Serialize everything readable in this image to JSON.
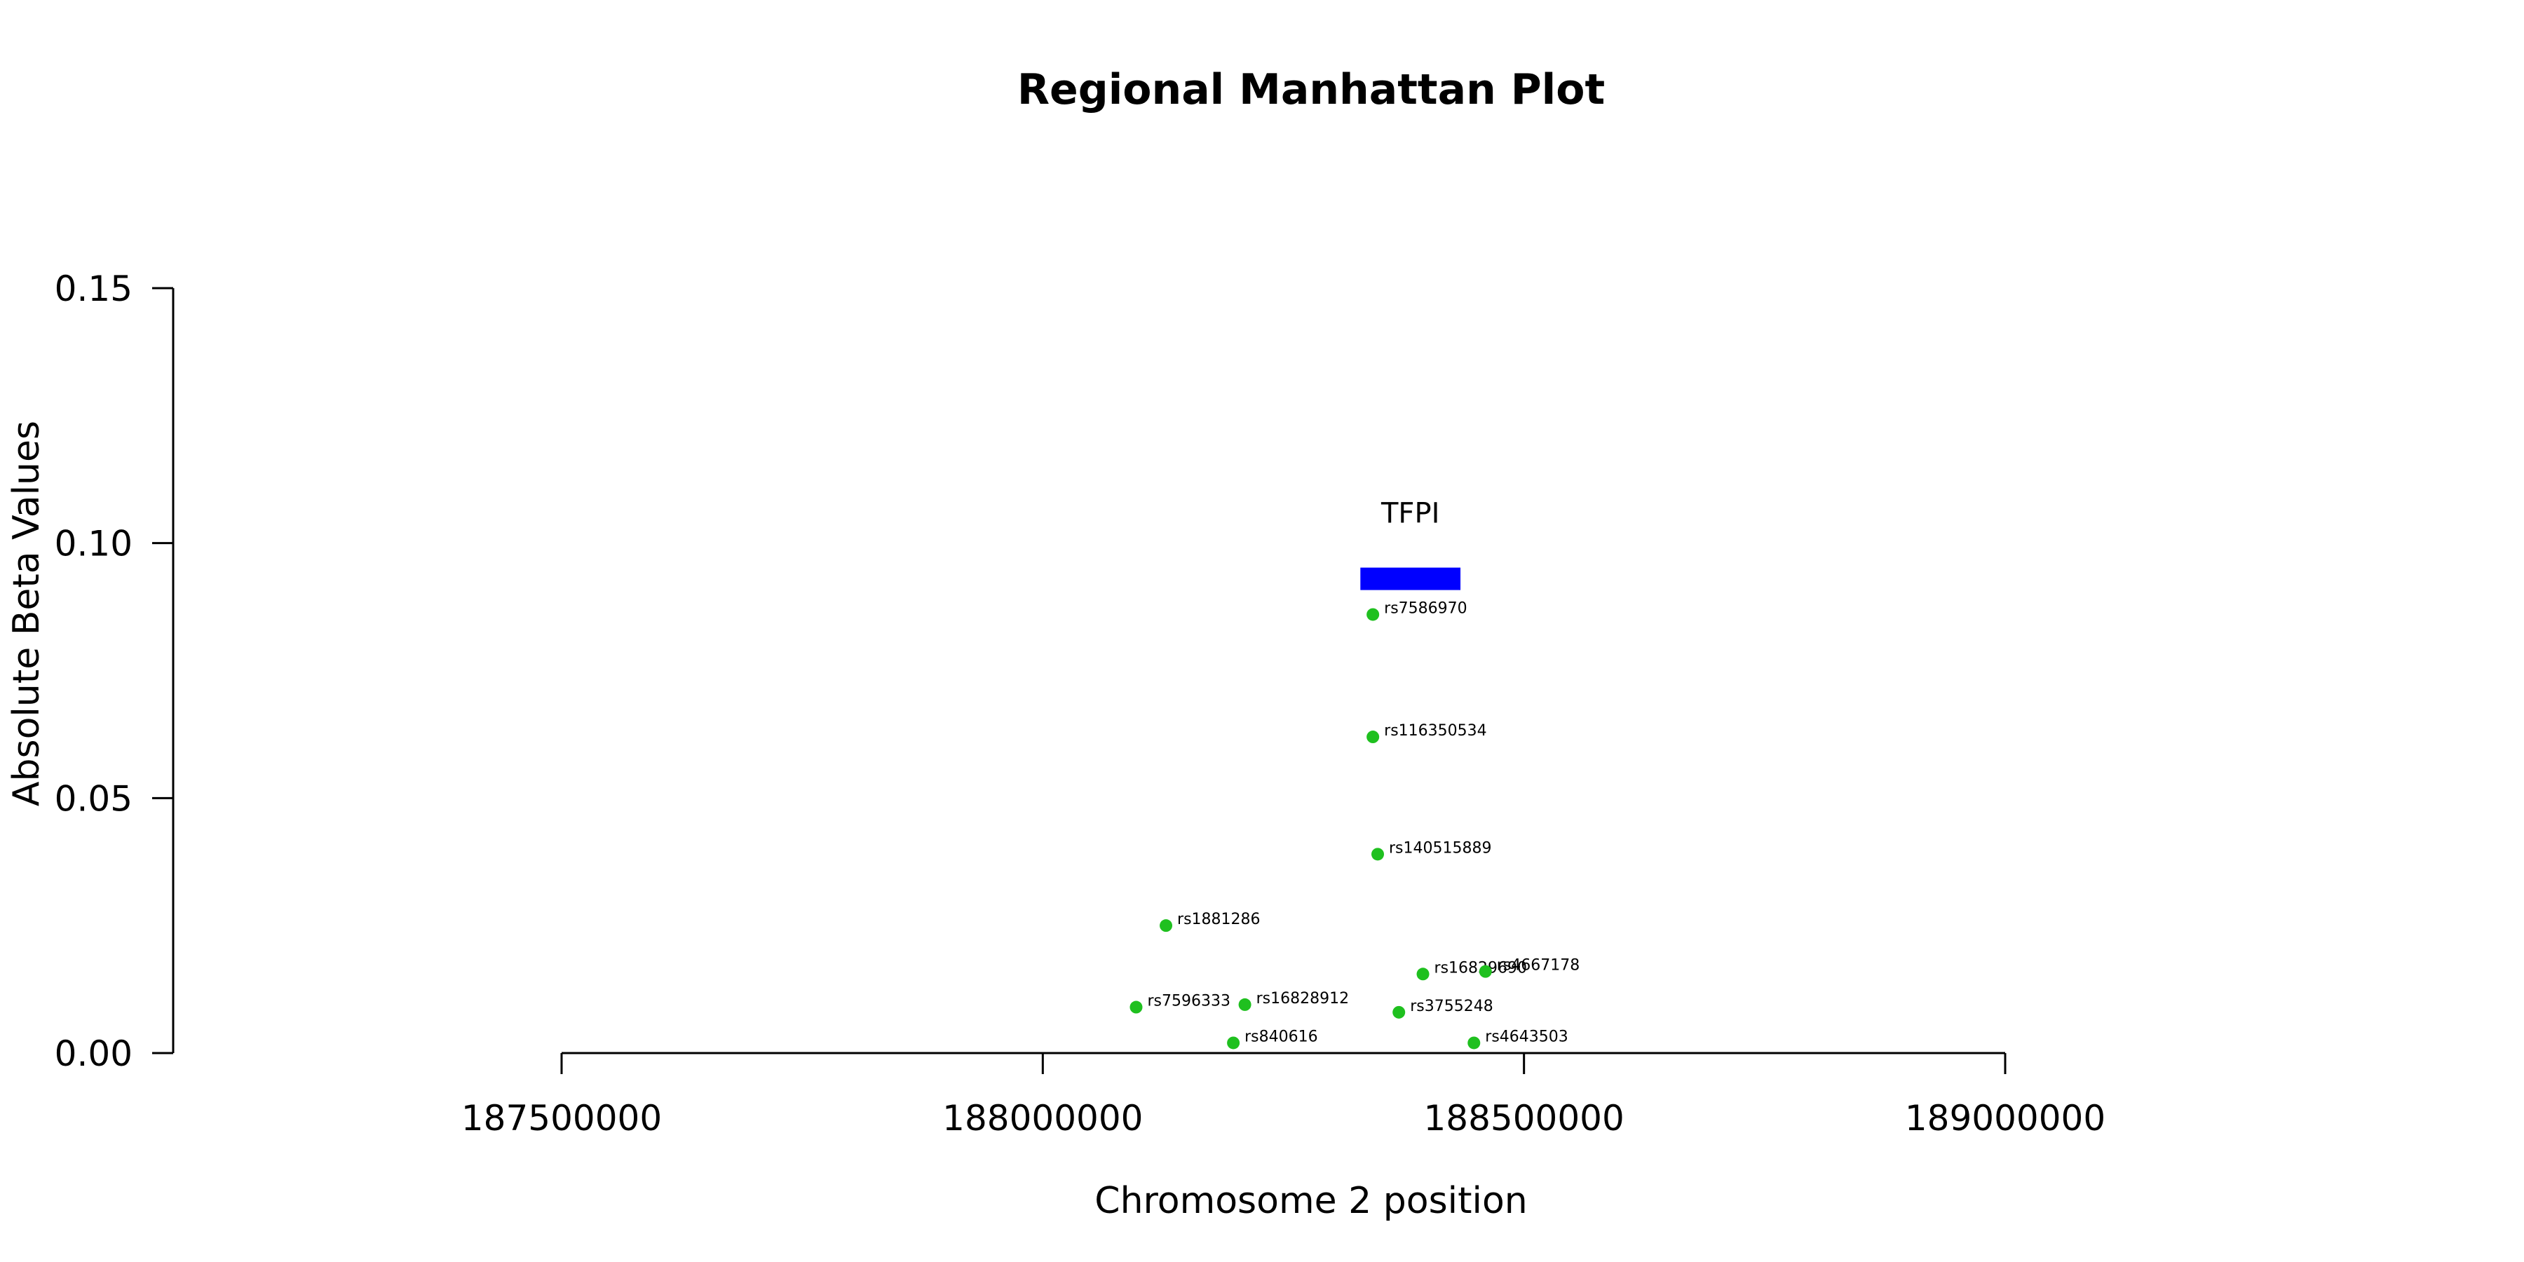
{
  "chart_data": {
    "type": "scatter",
    "title": "Regional Manhattan Plot",
    "xlabel": "Chromosome 2 position",
    "ylabel": "Absolute Beta Values",
    "xlim": [
      187500000,
      189000000
    ],
    "ylim": [
      0,
      0.15
    ],
    "x_ticks": [
      187500000,
      188000000,
      188500000,
      189000000
    ],
    "x_tick_labels": [
      "187500000",
      "188000000",
      "188500000",
      "189000000"
    ],
    "y_ticks": [
      0,
      0.05,
      0.1,
      0.15
    ],
    "y_tick_labels": [
      "0.00",
      "0.05",
      "0.10",
      "0.15"
    ],
    "grid": false,
    "point_color": "#1fc01f",
    "gene_color": "#0000ff",
    "genes": [
      {
        "name": "TFPI",
        "start": 188330000,
        "end": 188434000,
        "y": 0.093
      }
    ],
    "points": [
      {
        "label": "rs7586970",
        "x": 188343000,
        "y": 0.086
      },
      {
        "label": "rs116350534",
        "x": 188343000,
        "y": 0.062
      },
      {
        "label": "rs140515889",
        "x": 188348000,
        "y": 0.039
      },
      {
        "label": "rs1881286",
        "x": 188128000,
        "y": 0.025
      },
      {
        "label": "rs16829690",
        "x": 188395000,
        "y": 0.0155
      },
      {
        "label": "rs4667178",
        "x": 188460000,
        "y": 0.016
      },
      {
        "label": "rs7596333",
        "x": 188097000,
        "y": 0.009
      },
      {
        "label": "rs16828912",
        "x": 188210000,
        "y": 0.0095
      },
      {
        "label": "rs3755248",
        "x": 188370000,
        "y": 0.008
      },
      {
        "label": "rs840616",
        "x": 188198000,
        "y": 0.002
      },
      {
        "label": "rs4643503",
        "x": 188448000,
        "y": 0.002
      }
    ]
  }
}
